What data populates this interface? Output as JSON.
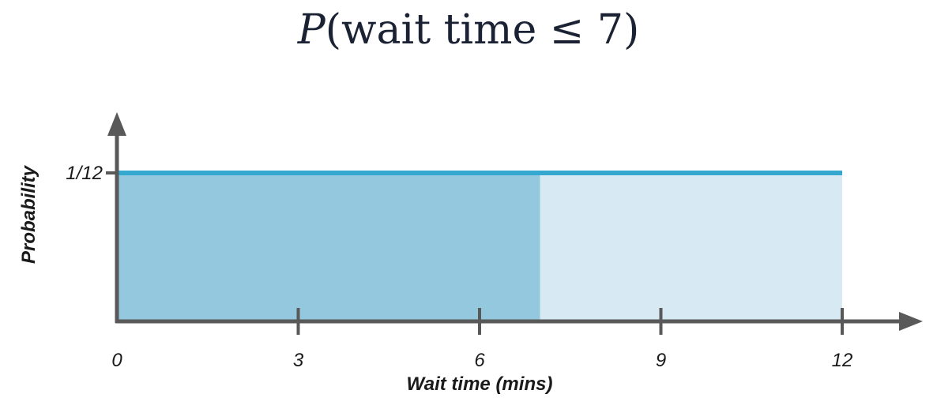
{
  "title": {
    "func": "P",
    "open": "(",
    "text": "wait time ≤ 7",
    "close": ")"
  },
  "colors": {
    "shaded": "#94c8de",
    "unshaded": "#d7eaf3",
    "line": "#35a8d0",
    "axis": "#595959"
  },
  "chart_data": {
    "type": "area",
    "title": "P(wait time ≤ 7)",
    "xlabel": "Wait time (mins)",
    "ylabel": "Probability",
    "x_ticks": [
      0,
      3,
      6,
      9,
      12
    ],
    "x_tick_labels": [
      "0",
      "3",
      "6",
      "9",
      "12"
    ],
    "y_ticks": [
      0.08333
    ],
    "y_tick_labels": [
      "1/12"
    ],
    "xlim": [
      0,
      12
    ],
    "series": [
      {
        "x": [
          0,
          12
        ],
        "y": [
          0.08333,
          0.08333
        ]
      }
    ],
    "shaded_region": {
      "x_from": 0,
      "x_to": 7
    },
    "grid": false
  }
}
